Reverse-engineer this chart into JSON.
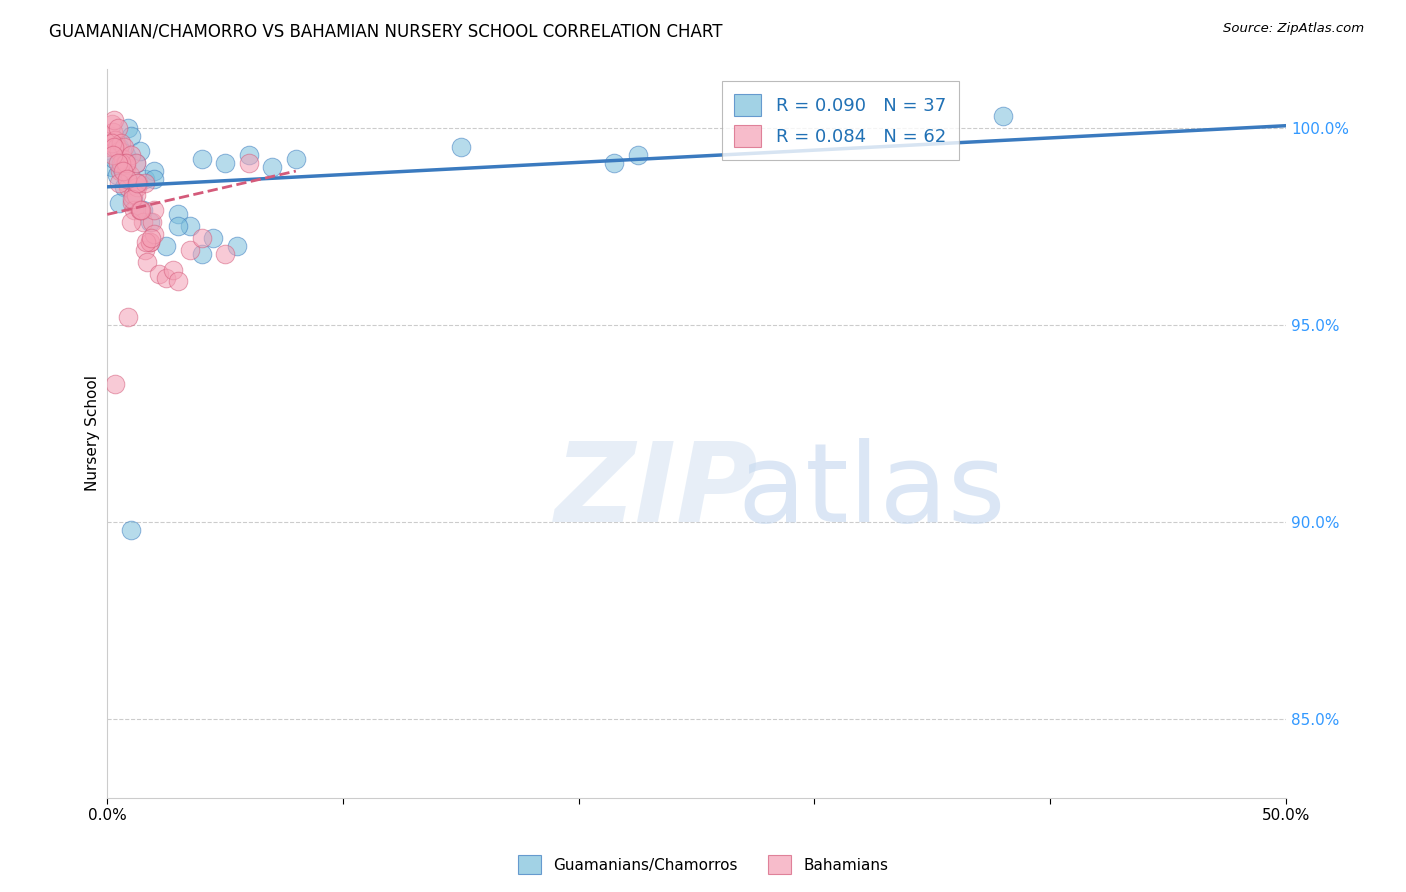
{
  "title": "GUAMANIAN/CHAMORRO VS BAHAMIAN NURSERY SCHOOL CORRELATION CHART",
  "source": "Source: ZipAtlas.com",
  "ylabel": "Nursery School",
  "xlim": [
    0.0,
    50.0
  ],
  "ylim": [
    83.0,
    101.5
  ],
  "ytick_positions": [
    85.0,
    90.0,
    95.0,
    100.0
  ],
  "ytick_labels": [
    "85.0%",
    "90.0%",
    "95.0%",
    "100.0%"
  ],
  "blue_color": "#7bbfdb",
  "pink_color": "#f4a0b5",
  "blue_line_color": "#3a7abf",
  "pink_line_color": "#d45a7a",
  "legend_R_blue": "R = 0.090",
  "legend_N_blue": "N = 37",
  "legend_R_pink": "R = 0.084",
  "legend_N_pink": "N = 62",
  "blue_scatter_x": [
    0.2,
    0.3,
    0.4,
    0.5,
    0.6,
    0.7,
    0.8,
    0.9,
    1.0,
    1.1,
    1.2,
    1.3,
    1.4,
    1.5,
    1.6,
    1.8,
    2.0,
    2.5,
    3.0,
    3.5,
    4.0,
    4.5,
    5.0,
    6.0,
    7.0,
    8.0,
    15.0,
    21.5,
    22.5,
    38.0,
    0.5,
    0.7,
    1.0,
    2.0,
    3.0,
    4.0,
    5.5
  ],
  "blue_scatter_y": [
    99.0,
    99.2,
    98.8,
    99.5,
    99.0,
    98.5,
    99.3,
    100.0,
    99.8,
    98.2,
    99.1,
    98.6,
    99.4,
    97.9,
    98.7,
    97.6,
    98.9,
    97.0,
    97.8,
    97.5,
    96.8,
    97.2,
    99.1,
    99.3,
    99.0,
    99.2,
    99.5,
    99.1,
    99.3,
    100.3,
    98.1,
    98.9,
    89.8,
    98.7,
    97.5,
    99.2,
    97.0
  ],
  "pink_scatter_x": [
    0.1,
    0.15,
    0.2,
    0.25,
    0.3,
    0.35,
    0.4,
    0.45,
    0.5,
    0.55,
    0.6,
    0.65,
    0.7,
    0.75,
    0.8,
    0.85,
    0.9,
    0.95,
    1.0,
    1.05,
    1.1,
    1.15,
    1.2,
    1.25,
    1.3,
    1.4,
    1.5,
    1.6,
    1.7,
    1.8,
    1.9,
    2.0,
    2.2,
    2.5,
    2.8,
    3.0,
    3.5,
    4.0,
    5.0,
    6.0,
    0.2,
    0.3,
    0.5,
    0.6,
    0.8,
    1.0,
    1.2,
    1.4,
    1.6,
    1.8,
    2.0,
    0.25,
    0.45,
    0.65,
    0.85,
    1.05,
    1.25,
    1.45,
    1.65,
    1.85,
    0.35,
    0.9
  ],
  "pink_scatter_y": [
    99.5,
    99.8,
    100.1,
    99.9,
    100.2,
    99.7,
    99.5,
    100.0,
    99.4,
    98.9,
    99.6,
    99.2,
    99.5,
    99.1,
    99.0,
    98.6,
    98.5,
    98.8,
    99.3,
    98.1,
    98.3,
    97.9,
    99.1,
    98.5,
    98.6,
    97.9,
    97.6,
    96.9,
    96.6,
    97.1,
    97.6,
    97.9,
    96.3,
    96.2,
    96.4,
    96.1,
    96.9,
    97.2,
    96.8,
    99.1,
    99.6,
    99.5,
    98.6,
    99.1,
    99.1,
    97.6,
    98.3,
    97.9,
    98.6,
    97.1,
    97.3,
    99.3,
    99.1,
    98.9,
    98.7,
    98.2,
    98.6,
    97.9,
    97.1,
    97.2,
    93.5,
    95.2
  ]
}
